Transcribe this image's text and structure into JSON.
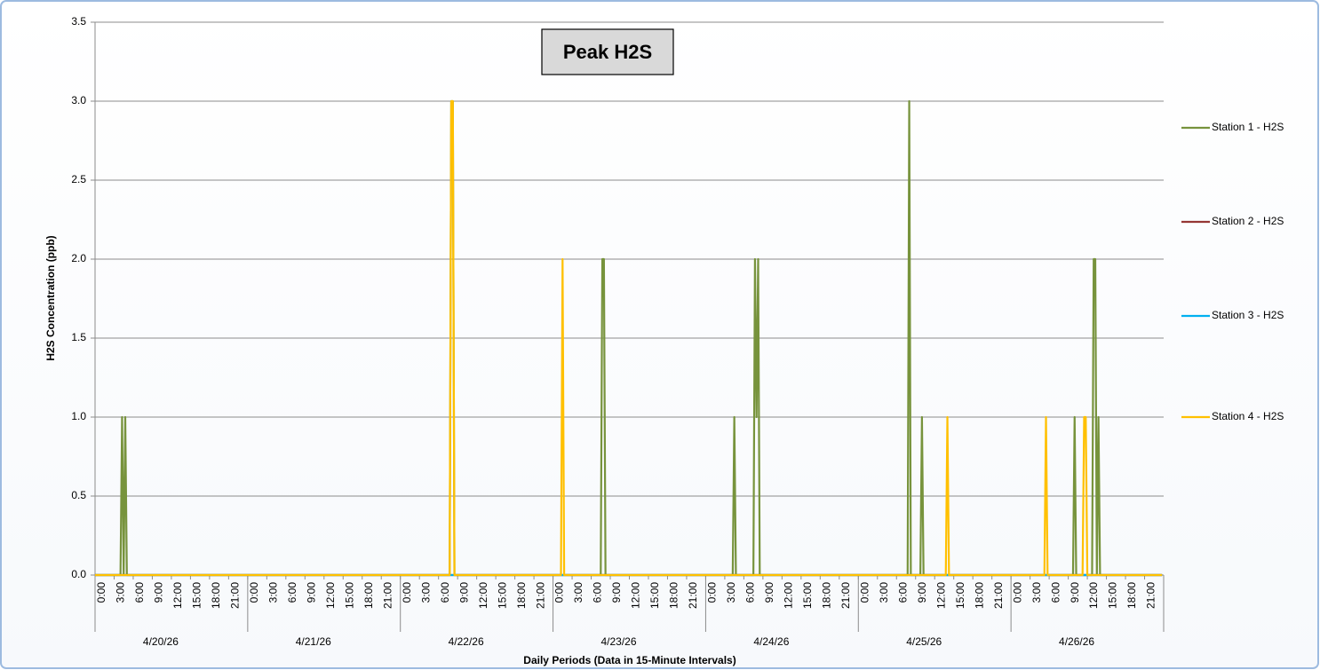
{
  "chart_data": {
    "type": "line",
    "title": "Peak H2S",
    "x_label": "Daily Periods (Data in 15-Minute Intervals)",
    "y_label": "H2S Concentration (ppb)",
    "xlim": [
      0,
      168
    ],
    "ylim": [
      0,
      3.5
    ],
    "yticks": [
      {
        "value": 0,
        "label": "0.0"
      },
      {
        "value": 0.5,
        "label": "0.5"
      },
      {
        "value": 1,
        "label": "1.0"
      },
      {
        "value": 1.5,
        "label": "1.5"
      },
      {
        "value": 2,
        "label": "2.0"
      },
      {
        "value": 2.5,
        "label": "2.5"
      },
      {
        "value": 3,
        "label": "3.0"
      },
      {
        "value": 3.5,
        "label": "3.5"
      }
    ],
    "xticks": [
      {
        "value": 0,
        "label": "0:00"
      },
      {
        "value": 3,
        "label": "3:00"
      },
      {
        "value": 6,
        "label": "6:00"
      },
      {
        "value": 9,
        "label": "9:00"
      },
      {
        "value": 12,
        "label": "12:00"
      },
      {
        "value": 15,
        "label": "15:00"
      },
      {
        "value": 18,
        "label": "18:00"
      },
      {
        "value": 21,
        "label": "21:00"
      },
      {
        "value": 24,
        "label": "0:00"
      },
      {
        "value": 27,
        "label": "3:00"
      },
      {
        "value": 30,
        "label": "6:00"
      },
      {
        "value": 33,
        "label": "9:00"
      },
      {
        "value": 36,
        "label": "12:00"
      },
      {
        "value": 39,
        "label": "15:00"
      },
      {
        "value": 42,
        "label": "18:00"
      },
      {
        "value": 45,
        "label": "21:00"
      },
      {
        "value": 48,
        "label": "0:00"
      },
      {
        "value": 51,
        "label": "3:00"
      },
      {
        "value": 54,
        "label": "6:00"
      },
      {
        "value": 57,
        "label": "9:00"
      },
      {
        "value": 60,
        "label": "12:00"
      },
      {
        "value": 63,
        "label": "15:00"
      },
      {
        "value": 66,
        "label": "18:00"
      },
      {
        "value": 69,
        "label": "21:00"
      },
      {
        "value": 72,
        "label": "0:00"
      },
      {
        "value": 75,
        "label": "3:00"
      },
      {
        "value": 78,
        "label": "6:00"
      },
      {
        "value": 81,
        "label": "9:00"
      },
      {
        "value": 84,
        "label": "12:00"
      },
      {
        "value": 87,
        "label": "15:00"
      },
      {
        "value": 90,
        "label": "18:00"
      },
      {
        "value": 93,
        "label": "21:00"
      },
      {
        "value": 96,
        "label": "0:00"
      },
      {
        "value": 99,
        "label": "3:00"
      },
      {
        "value": 102,
        "label": "6:00"
      },
      {
        "value": 105,
        "label": "9:00"
      },
      {
        "value": 108,
        "label": "12:00"
      },
      {
        "value": 111,
        "label": "15:00"
      },
      {
        "value": 114,
        "label": "18:00"
      },
      {
        "value": 117,
        "label": "21:00"
      },
      {
        "value": 120,
        "label": "0:00"
      },
      {
        "value": 123,
        "label": "3:00"
      },
      {
        "value": 126,
        "label": "6:00"
      },
      {
        "value": 129,
        "label": "9:00"
      },
      {
        "value": 132,
        "label": "12:00"
      },
      {
        "value": 135,
        "label": "15:00"
      },
      {
        "value": 138,
        "label": "18:00"
      },
      {
        "value": 141,
        "label": "21:00"
      },
      {
        "value": 144,
        "label": "0:00"
      },
      {
        "value": 147,
        "label": "3:00"
      },
      {
        "value": 150,
        "label": "6:00"
      },
      {
        "value": 153,
        "label": "9:00"
      },
      {
        "value": 156,
        "label": "12:00"
      },
      {
        "value": 159,
        "label": "15:00"
      },
      {
        "value": 162,
        "label": "18:00"
      },
      {
        "value": 165,
        "label": "21:00"
      }
    ],
    "day_labels": [
      {
        "value": 12,
        "label": "4/20/26"
      },
      {
        "value": 36,
        "label": "4/21/26"
      },
      {
        "value": 60,
        "label": "4/22/26"
      },
      {
        "value": 84,
        "label": "4/23/26"
      },
      {
        "value": 108,
        "label": "4/24/26"
      },
      {
        "value": 132,
        "label": "4/25/26"
      },
      {
        "value": 156,
        "label": "4/26/26"
      }
    ],
    "grid": true,
    "legend": "right",
    "series": [
      {
        "name": "Station 1 - H2S",
        "color": "#77933c",
        "x": [
          0,
          4,
          4.25,
          4.5,
          4.75,
          5,
          55.75,
          56,
          56.25,
          56.5,
          79.5,
          79.75,
          80,
          80.25,
          100.25,
          100.5,
          100.75,
          103.5,
          103.75,
          104,
          104.25,
          104.5,
          127.75,
          128,
          128.25,
          129.75,
          130,
          130.25,
          153.75,
          154,
          154.25,
          156.75,
          157,
          157.25,
          157.5,
          157.75,
          158,
          167.75
        ],
        "values": [
          0,
          0,
          1,
          0,
          1,
          0,
          0,
          3,
          3,
          0,
          0,
          2,
          2,
          0,
          0,
          1,
          0,
          0,
          2,
          1,
          2,
          0,
          0,
          3,
          0,
          0,
          1,
          0,
          0,
          1,
          0,
          0,
          2,
          2,
          0,
          1,
          0,
          0
        ]
      },
      {
        "name": "Station 2 - H2S",
        "color": "#953735",
        "x": [
          0,
          167.75
        ],
        "values": [
          0,
          0
        ]
      },
      {
        "name": "Station 3 - H2S",
        "color": "#00b0f0",
        "x": [
          0,
          167.75
        ],
        "values": [
          0,
          0
        ]
      },
      {
        "name": "Station 4 - H2S",
        "color": "#ffc000",
        "x": [
          0,
          55.75,
          56,
          56.25,
          56.5,
          73.25,
          73.5,
          73.75,
          133.75,
          134,
          134.25,
          149.25,
          149.5,
          149.75,
          155.25,
          155.5,
          155.75,
          156,
          167.75
        ],
        "values": [
          0,
          0,
          3,
          3,
          0,
          0,
          2,
          0,
          0,
          1,
          0,
          0,
          1,
          0,
          0,
          1,
          1,
          0,
          0
        ]
      }
    ]
  }
}
